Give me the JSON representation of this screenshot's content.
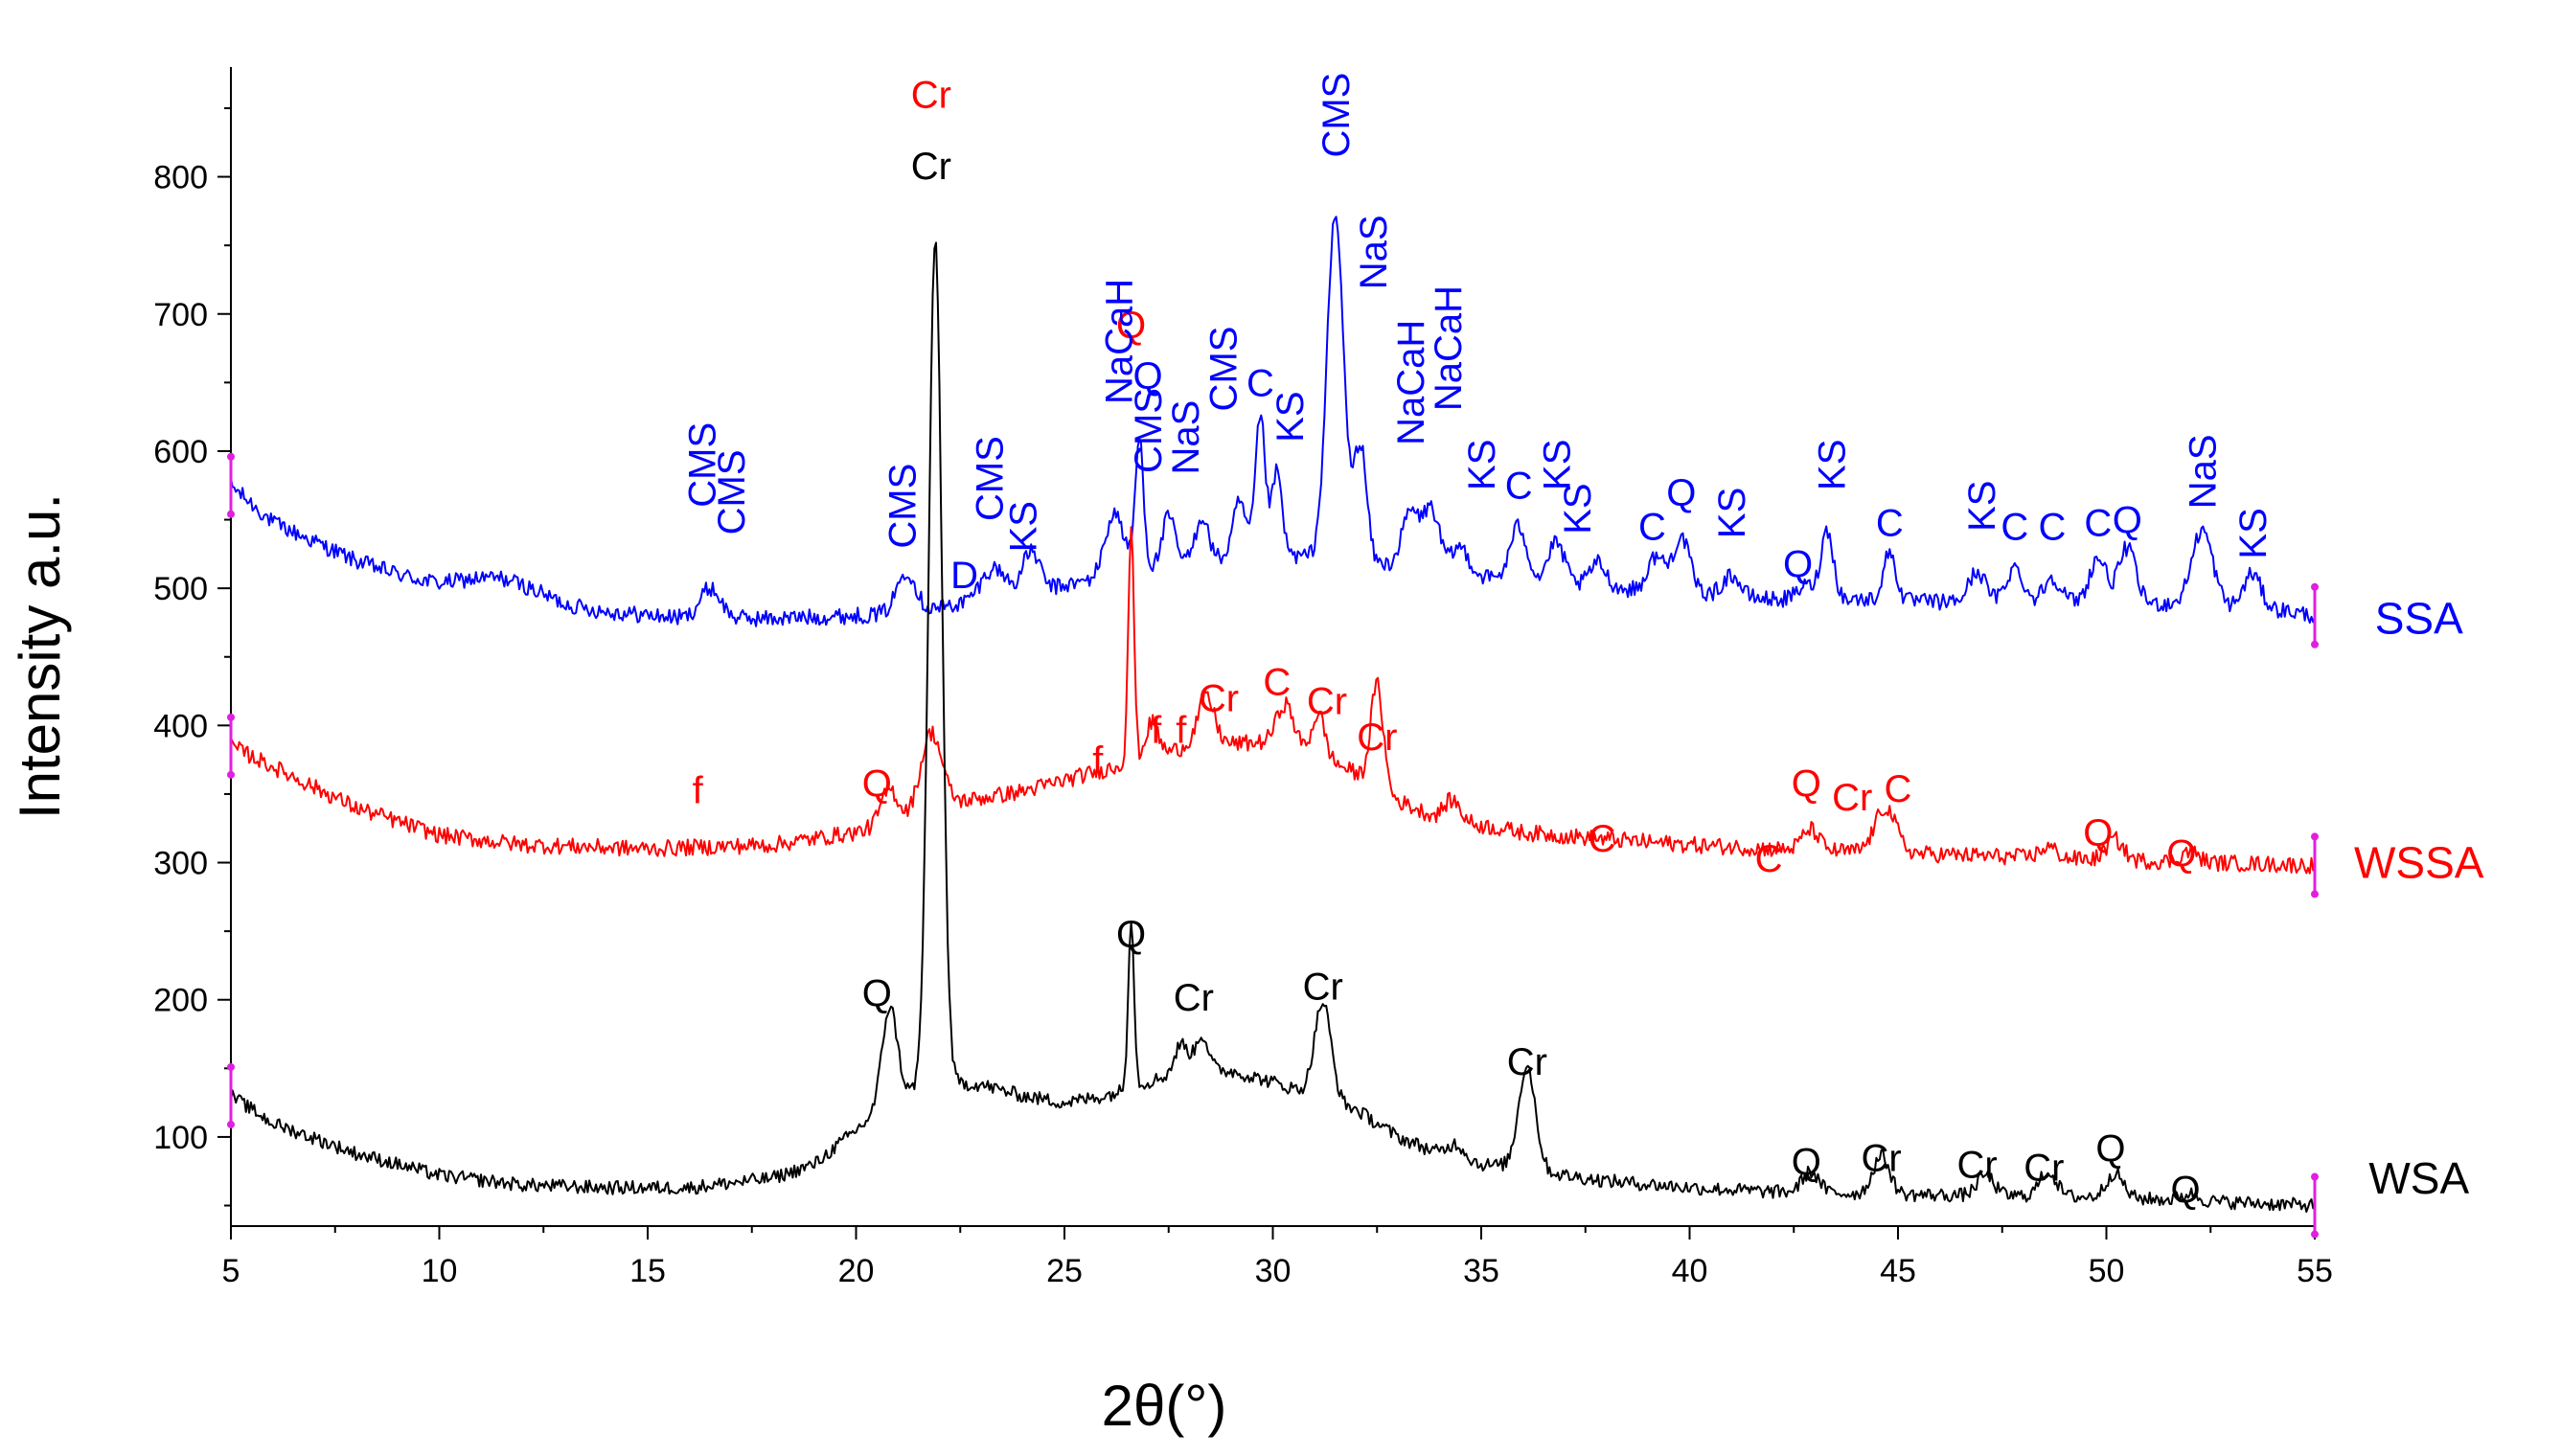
{
  "chart_data": {
    "type": "line",
    "title": "",
    "xlabel": "2θ(°)",
    "ylabel": "Intensity a.u.",
    "xlim": [
      5,
      55
    ],
    "ylim": [
      35,
      880
    ],
    "xticks": [
      5,
      10,
      15,
      20,
      25,
      30,
      35,
      40,
      45,
      50,
      55
    ],
    "yticks": [
      100,
      200,
      300,
      400,
      500,
      600,
      700,
      800
    ],
    "colors": {
      "SSA": "#0000ff",
      "WSSA": "#ff0000",
      "WSA": "#000000"
    },
    "series": [
      {
        "name": "SSA",
        "baseline_points": [
          [
            5,
            575
          ],
          [
            6,
            548
          ],
          [
            8,
            520
          ],
          [
            10,
            500
          ],
          [
            11.5,
            495
          ],
          [
            13,
            485
          ],
          [
            16,
            478
          ],
          [
            18,
            478
          ],
          [
            20,
            480
          ],
          [
            21,
            482
          ],
          [
            22,
            486
          ],
          [
            24,
            496
          ],
          [
            25.5,
            505
          ],
          [
            26.5,
            512
          ],
          [
            28,
            520
          ],
          [
            30,
            525
          ],
          [
            32,
            520
          ],
          [
            34,
            512
          ],
          [
            36,
            505
          ],
          [
            38,
            500
          ],
          [
            40,
            497
          ],
          [
            42,
            492
          ],
          [
            44,
            492
          ],
          [
            46,
            490
          ],
          [
            48,
            490
          ],
          [
            50,
            490
          ],
          [
            52,
            488
          ],
          [
            54,
            485
          ],
          [
            55,
            480
          ]
        ],
        "peaks": [
          [
            11.5,
            12,
            1.0
          ],
          [
            16.5,
            22,
            0.25
          ],
          [
            21.2,
            30,
            0.22
          ],
          [
            23.3,
            22,
            0.3
          ],
          [
            24.2,
            30,
            0.2
          ],
          [
            26.2,
            45,
            0.22
          ],
          [
            26.8,
            95,
            0.1
          ],
          [
            27.5,
            35,
            0.15
          ],
          [
            28.3,
            32,
            0.15
          ],
          [
            29.2,
            40,
            0.15
          ],
          [
            29.7,
            100,
            0.12
          ],
          [
            30.1,
            60,
            0.12
          ],
          [
            31.5,
            250,
            0.2
          ],
          [
            32.1,
            85,
            0.15
          ],
          [
            33.3,
            40,
            0.2
          ],
          [
            33.8,
            45,
            0.2
          ],
          [
            34.5,
            20,
            0.2
          ],
          [
            35.9,
            40,
            0.2
          ],
          [
            36.8,
            30,
            0.2
          ],
          [
            37.8,
            18,
            0.2
          ],
          [
            39.2,
            25,
            0.2
          ],
          [
            39.8,
            40,
            0.2
          ],
          [
            41,
            15,
            0.2
          ],
          [
            42.8,
            10,
            0.2
          ],
          [
            43.3,
            50,
            0.15
          ],
          [
            44.8,
            35,
            0.15
          ],
          [
            46.9,
            22,
            0.2
          ],
          [
            47.8,
            25,
            0.2
          ],
          [
            48.7,
            18,
            0.2
          ],
          [
            49.8,
            32,
            0.2
          ],
          [
            50.5,
            40,
            0.2
          ],
          [
            52.3,
            55,
            0.25
          ],
          [
            53.5,
            25,
            0.2
          ]
        ],
        "noise": 6
      },
      {
        "name": "WSSA",
        "baseline_points": [
          [
            5,
            385
          ],
          [
            6,
            370
          ],
          [
            8,
            340
          ],
          [
            10,
            320
          ],
          [
            12,
            313
          ],
          [
            15,
            310
          ],
          [
            18,
            313
          ],
          [
            20,
            322
          ],
          [
            21,
            330
          ],
          [
            22,
            342
          ],
          [
            24,
            352
          ],
          [
            26,
            368
          ],
          [
            28,
            385
          ],
          [
            30,
            388
          ],
          [
            31,
            380
          ],
          [
            32,
            365
          ],
          [
            33,
            345
          ],
          [
            34,
            332
          ],
          [
            36,
            322
          ],
          [
            38,
            317
          ],
          [
            40,
            313
          ],
          [
            42,
            310
          ],
          [
            45,
            307
          ],
          [
            48,
            304
          ],
          [
            50,
            302
          ],
          [
            55,
            298
          ]
        ],
        "peaks": [
          [
            20.8,
            25,
            0.2
          ],
          [
            21.8,
            55,
            0.25
          ],
          [
            26.6,
            170,
            0.07
          ],
          [
            27.1,
            25,
            0.15
          ],
          [
            28.4,
            35,
            0.2
          ],
          [
            30.3,
            30,
            0.2
          ],
          [
            31.1,
            30,
            0.15
          ],
          [
            32.5,
            75,
            0.15
          ],
          [
            34.3,
            15,
            0.2
          ],
          [
            42.9,
            15,
            0.2
          ],
          [
            44.7,
            33,
            0.25
          ],
          [
            48.6,
            8,
            0.2
          ],
          [
            50.2,
            15,
            0.2
          ],
          [
            52,
            8,
            0.2
          ]
        ],
        "noise": 6
      },
      {
        "name": "WSA",
        "baseline_points": [
          [
            5,
            130
          ],
          [
            6,
            110
          ],
          [
            8,
            88
          ],
          [
            10,
            72
          ],
          [
            12,
            65
          ],
          [
            14,
            63
          ],
          [
            16,
            63
          ],
          [
            18,
            70
          ],
          [
            19,
            80
          ],
          [
            20,
            105
          ],
          [
            21,
            130
          ],
          [
            22,
            140
          ],
          [
            23,
            138
          ],
          [
            24,
            130
          ],
          [
            25,
            125
          ],
          [
            26,
            130
          ],
          [
            27,
            140
          ],
          [
            28,
            150
          ],
          [
            29,
            148
          ],
          [
            30,
            140
          ],
          [
            31,
            130
          ],
          [
            32,
            120
          ],
          [
            33,
            100
          ],
          [
            34,
            88
          ],
          [
            35,
            80
          ],
          [
            36,
            78
          ],
          [
            37,
            72
          ],
          [
            38,
            68
          ],
          [
            40,
            63
          ],
          [
            42,
            60
          ],
          [
            45,
            58
          ],
          [
            48,
            57
          ],
          [
            50,
            56
          ],
          [
            55,
            50
          ]
        ],
        "peaks": [
          [
            20.8,
            70,
            0.18
          ],
          [
            21.9,
            615,
            0.16
          ],
          [
            26.6,
            125,
            0.07
          ],
          [
            27.8,
            20,
            0.15
          ],
          [
            28.3,
            25,
            0.15
          ],
          [
            31.2,
            70,
            0.2
          ],
          [
            34.4,
            10,
            0.2
          ],
          [
            36.1,
            75,
            0.2
          ],
          [
            42.9,
            15,
            0.2
          ],
          [
            44.6,
            28,
            0.2
          ],
          [
            47.1,
            15,
            0.2
          ],
          [
            48.6,
            18,
            0.2
          ],
          [
            50.2,
            18,
            0.2
          ],
          [
            52,
            5,
            0.2
          ]
        ],
        "noise": 5
      }
    ],
    "series_labels": [
      {
        "text": "SSA",
        "x": 57.5,
        "y": 478
      },
      {
        "text": "WSSA",
        "x": 57.5,
        "y": 300
      },
      {
        "text": "WSA",
        "x": 57.5,
        "y": 70
      }
    ],
    "annotations": [
      {
        "text": "Cr",
        "x": 21.8,
        "y": 808,
        "color": "#000000"
      },
      {
        "text": "Q",
        "x": 20.5,
        "y": 205,
        "color": "#000000"
      },
      {
        "text": "Q",
        "x": 26.6,
        "y": 248,
        "color": "#000000"
      },
      {
        "text": "Cr",
        "x": 28.1,
        "y": 202,
        "color": "#000000"
      },
      {
        "text": "Cr",
        "x": 31.2,
        "y": 210,
        "color": "#000000"
      },
      {
        "text": "Cr",
        "x": 36.1,
        "y": 155,
        "color": "#000000"
      },
      {
        "text": "Q",
        "x": 42.8,
        "y": 82,
        "color": "#000000"
      },
      {
        "text": "Cr",
        "x": 44.6,
        "y": 85,
        "color": "#000000"
      },
      {
        "text": "Cr",
        "x": 46.9,
        "y": 80,
        "color": "#000000"
      },
      {
        "text": "Cr",
        "x": 48.5,
        "y": 78,
        "color": "#000000"
      },
      {
        "text": "Q",
        "x": 50.1,
        "y": 92,
        "color": "#000000"
      },
      {
        "text": "Q",
        "x": 51.9,
        "y": 62,
        "color": "#000000"
      },
      {
        "text": "Cr",
        "x": 21.8,
        "y": 860,
        "color": "#ff0000"
      },
      {
        "text": "Q",
        "x": 26.6,
        "y": 692,
        "color": "#ff0000"
      },
      {
        "text": "f",
        "x": 16.2,
        "y": 353,
        "color": "#ff0000"
      },
      {
        "text": "Q",
        "x": 20.5,
        "y": 358,
        "color": "#ff0000"
      },
      {
        "text": "f",
        "x": 25.8,
        "y": 375,
        "color": "#ff0000"
      },
      {
        "text": "f",
        "x": 27.2,
        "y": 397,
        "color": "#ff0000"
      },
      {
        "text": "f",
        "x": 27.8,
        "y": 397,
        "color": "#ff0000"
      },
      {
        "text": "Cr",
        "x": 28.7,
        "y": 420,
        "color": "#ff0000"
      },
      {
        "text": "C",
        "x": 30.1,
        "y": 432,
        "color": "#ff0000"
      },
      {
        "text": "Cr",
        "x": 31.3,
        "y": 418,
        "color": "#ff0000"
      },
      {
        "text": "Cr",
        "x": 32.5,
        "y": 392,
        "color": "#ff0000"
      },
      {
        "text": "C",
        "x": 37.9,
        "y": 318,
        "color": "#ff0000"
      },
      {
        "text": "C",
        "x": 41.9,
        "y": 303,
        "color": "#ff0000"
      },
      {
        "text": "Q",
        "x": 42.8,
        "y": 358,
        "color": "#ff0000"
      },
      {
        "text": "Cr",
        "x": 43.9,
        "y": 348,
        "color": "#ff0000"
      },
      {
        "text": "C",
        "x": 45.0,
        "y": 354,
        "color": "#ff0000"
      },
      {
        "text": "Q",
        "x": 49.8,
        "y": 322,
        "color": "#ff0000"
      },
      {
        "text": "Q",
        "x": 51.8,
        "y": 307,
        "color": "#ff0000"
      },
      {
        "text": "CMS",
        "x": 31.5,
        "y": 845,
        "color": "#0000ff",
        "rotate": true
      },
      {
        "text": "NaS",
        "x": 32.4,
        "y": 745,
        "color": "#0000ff",
        "rotate": true
      },
      {
        "text": "NaCaH",
        "x": 26.3,
        "y": 680,
        "color": "#0000ff",
        "rotate": true
      },
      {
        "text": "Q",
        "x": 27.0,
        "y": 655,
        "color": "#0000ff"
      },
      {
        "text": "CMS",
        "x": 27.0,
        "y": 615,
        "color": "#0000ff",
        "rotate": true
      },
      {
        "text": "NaS",
        "x": 27.9,
        "y": 610,
        "color": "#0000ff",
        "rotate": true
      },
      {
        "text": "CMS",
        "x": 28.8,
        "y": 660,
        "color": "#0000ff",
        "rotate": true
      },
      {
        "text": "C",
        "x": 29.7,
        "y": 650,
        "color": "#0000ff"
      },
      {
        "text": "KS",
        "x": 30.4,
        "y": 625,
        "color": "#0000ff",
        "rotate": true
      },
      {
        "text": "NaCaH",
        "x": 33.3,
        "y": 650,
        "color": "#0000ff",
        "rotate": true
      },
      {
        "text": "NaCaH",
        "x": 34.2,
        "y": 675,
        "color": "#0000ff",
        "rotate": true
      },
      {
        "text": "KS",
        "x": 35.0,
        "y": 590,
        "color": "#0000ff",
        "rotate": true
      },
      {
        "text": "C",
        "x": 35.9,
        "y": 575,
        "color": "#0000ff"
      },
      {
        "text": "KS",
        "x": 36.8,
        "y": 590,
        "color": "#0000ff",
        "rotate": true
      },
      {
        "text": "KS",
        "x": 37.3,
        "y": 558,
        "color": "#0000ff",
        "rotate": true
      },
      {
        "text": "C",
        "x": 39.1,
        "y": 545,
        "color": "#0000ff"
      },
      {
        "text": "Q",
        "x": 39.8,
        "y": 570,
        "color": "#0000ff"
      },
      {
        "text": "KS",
        "x": 41.0,
        "y": 555,
        "color": "#0000ff",
        "rotate": true
      },
      {
        "text": "Q",
        "x": 42.6,
        "y": 518,
        "color": "#0000ff"
      },
      {
        "text": "KS",
        "x": 43.4,
        "y": 590,
        "color": "#0000ff",
        "rotate": true
      },
      {
        "text": "C",
        "x": 44.8,
        "y": 548,
        "color": "#0000ff"
      },
      {
        "text": "KS",
        "x": 47.0,
        "y": 560,
        "color": "#0000ff",
        "rotate": true
      },
      {
        "text": "C",
        "x": 47.8,
        "y": 545,
        "color": "#0000ff"
      },
      {
        "text": "C",
        "x": 48.7,
        "y": 545,
        "color": "#0000ff"
      },
      {
        "text": "C",
        "x": 49.8,
        "y": 548,
        "color": "#0000ff"
      },
      {
        "text": "Q",
        "x": 50.5,
        "y": 550,
        "color": "#0000ff"
      },
      {
        "text": "NaS",
        "x": 52.3,
        "y": 585,
        "color": "#0000ff",
        "rotate": true
      },
      {
        "text": "KS",
        "x": 53.5,
        "y": 540,
        "color": "#0000ff",
        "rotate": true
      },
      {
        "text": "CMS",
        "x": 16.3,
        "y": 590,
        "color": "#0000ff",
        "rotate": true
      },
      {
        "text": "CMS",
        "x": 17.0,
        "y": 570,
        "color": "#0000ff",
        "rotate": true
      },
      {
        "text": "CMS",
        "x": 21.1,
        "y": 560,
        "color": "#0000ff",
        "rotate": true
      },
      {
        "text": "CMS",
        "x": 23.2,
        "y": 580,
        "color": "#0000ff",
        "rotate": true
      },
      {
        "text": "D",
        "x": 22.6,
        "y": 510,
        "color": "#0000ff"
      },
      {
        "text": "KS",
        "x": 24.0,
        "y": 545,
        "color": "#0000ff",
        "rotate": true
      }
    ]
  }
}
